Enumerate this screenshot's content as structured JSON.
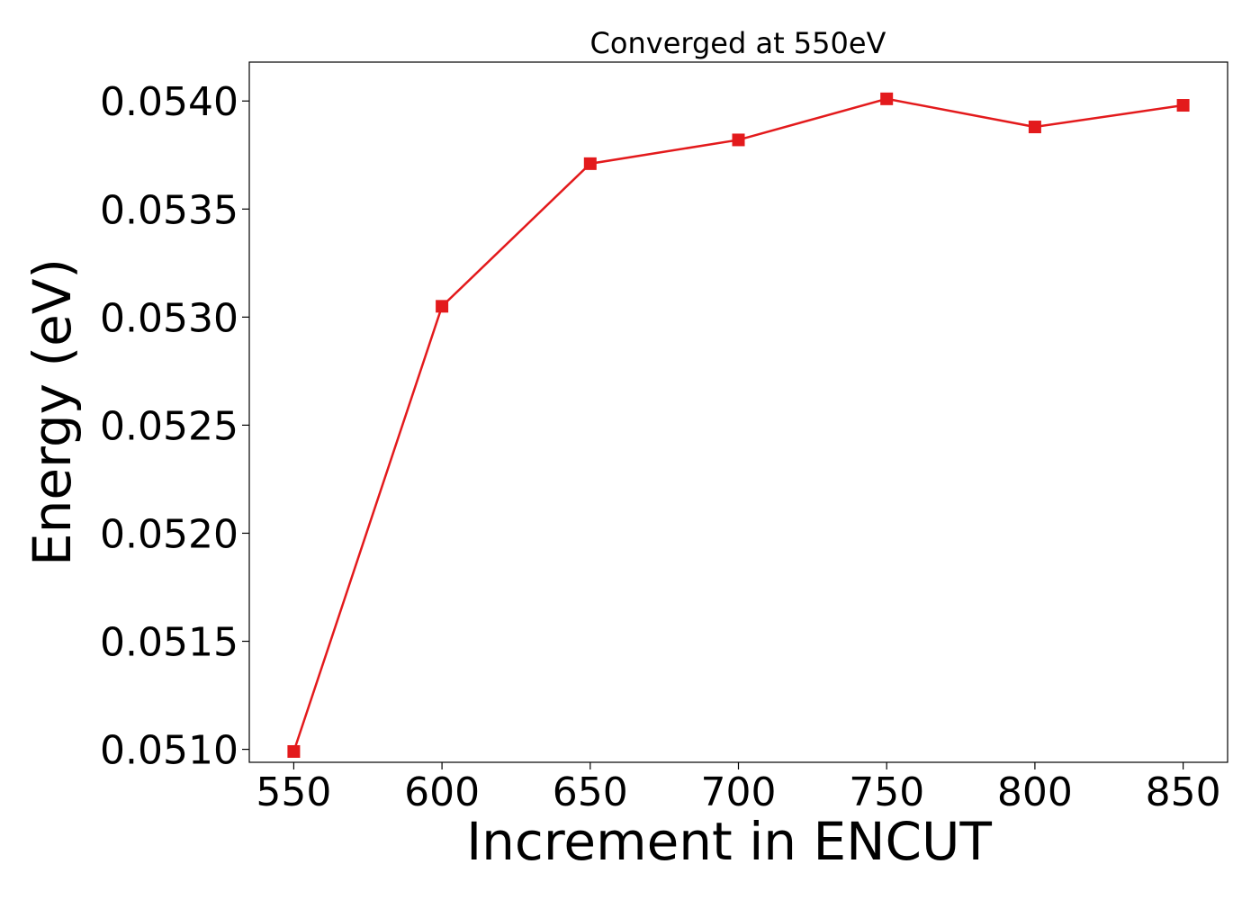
{
  "chart_data": {
    "type": "line",
    "title": "Converged at 550eV",
    "xlabel": "Increment in ENCUT",
    "ylabel": "Energy (eV)",
    "x": [
      550,
      600,
      650,
      700,
      750,
      800,
      850
    ],
    "series": [
      {
        "values": [
          0.05099,
          0.05305,
          0.05371,
          0.05382,
          0.05401,
          0.05388,
          0.05398
        ],
        "color": "#e31a1c",
        "marker": "square"
      }
    ],
    "xlim": [
      535,
      865
    ],
    "ylim": [
      0.05094,
      0.05418
    ],
    "x_ticks": [
      550,
      600,
      650,
      700,
      750,
      800,
      850
    ],
    "x_tick_labels": [
      "550",
      "600",
      "650",
      "700",
      "750",
      "800",
      "850"
    ],
    "y_ticks": [
      0.051,
      0.0515,
      0.052,
      0.0525,
      0.053,
      0.0535,
      0.054
    ],
    "y_tick_labels": [
      "0.0510",
      "0.0515",
      "0.0520",
      "0.0525",
      "0.0530",
      "0.0535",
      "0.0540"
    ],
    "grid": false,
    "legend": "none"
  }
}
